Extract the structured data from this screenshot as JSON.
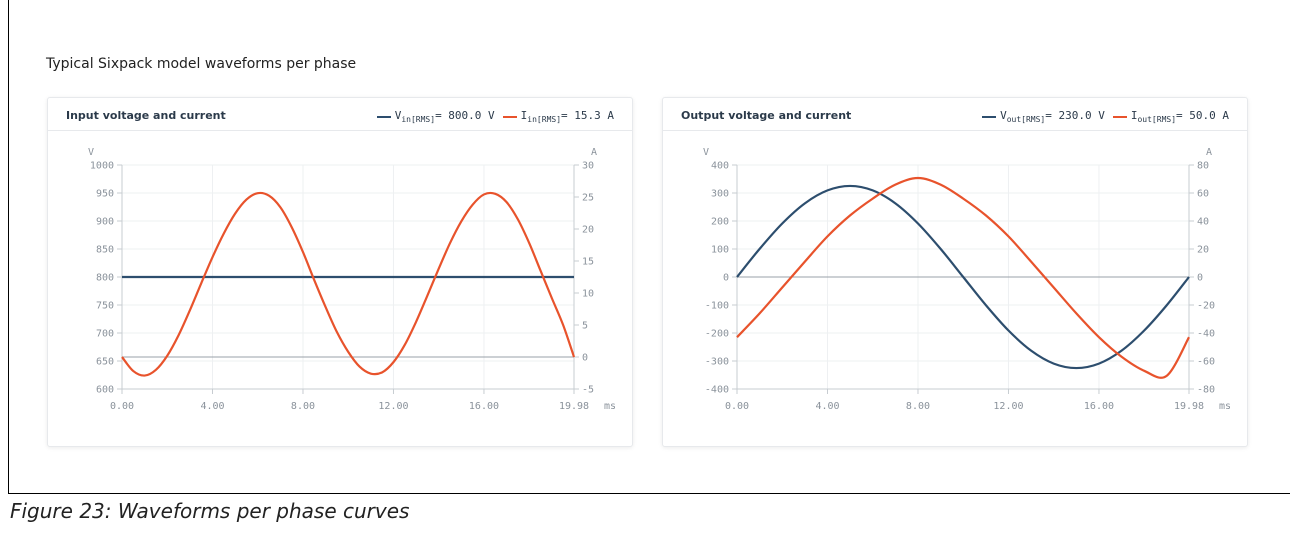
{
  "section_title": "Typical Sixpack model waveforms per phase",
  "caption": "Figure 23: Waveforms per phase curves",
  "colors": {
    "voltage": "#2d4e6e",
    "current": "#e8532c"
  },
  "chart_data": [
    {
      "type": "line",
      "title": "Input voltage and current",
      "legend": [
        {
          "base": "V",
          "sub": "in[RMS]",
          "value": "= 800.0 V",
          "color": "#2d4e6e"
        },
        {
          "base": "I",
          "sub": "in[RMS]",
          "value": "= 15.3 A",
          "color": "#e8532c"
        }
      ],
      "left_unit": "V",
      "right_unit": "A",
      "x_unit": "ms",
      "xlim": [
        0,
        19.98
      ],
      "x_ticks": [
        0,
        4,
        8,
        12,
        16,
        19.98
      ],
      "x_tick_labels": [
        "0.00",
        "4.00",
        "8.00",
        "12.00",
        "16.00",
        "19.98"
      ],
      "ylim_left": [
        600,
        1000
      ],
      "y_ticks_left": [
        600,
        650,
        700,
        750,
        800,
        850,
        900,
        950,
        1000
      ],
      "y_tick_labels_left": [
        "600",
        "650",
        "700",
        "750",
        "800",
        "850",
        "900",
        "950",
        "1000"
      ],
      "ylim_right": [
        -5,
        30
      ],
      "y_ticks_right": [
        -5,
        0,
        5,
        10,
        15,
        20,
        25,
        30
      ],
      "y_tick_labels_right": [
        "-5",
        "0",
        "5",
        "10",
        "15",
        "20",
        "25",
        "30"
      ],
      "zero_line_right": 0,
      "series": [
        {
          "axis": "left",
          "color": "#2d4e6e",
          "x": [
            0,
            19.98
          ],
          "y": [
            800,
            800
          ]
        },
        {
          "axis": "right",
          "color": "#e8532c",
          "x": [
            0,
            0.5,
            1,
            1.5,
            2,
            2.5,
            3,
            3.5,
            4,
            4.5,
            5,
            5.5,
            6,
            6.5,
            7,
            7.5,
            8,
            8.5,
            9,
            9.5,
            10,
            10.5,
            11,
            11.5,
            12,
            12.5,
            13,
            13.5,
            14,
            14.5,
            15,
            15.5,
            16,
            16.5,
            17,
            17.5,
            18,
            18.5,
            19,
            19.5,
            19.98
          ],
          "y": [
            0,
            -2.2,
            -2.9,
            -2,
            0.2,
            3.4,
            7.3,
            11.5,
            15.6,
            19.3,
            22.4,
            24.6,
            25.6,
            25.2,
            23.4,
            20.3,
            16.4,
            12,
            7.8,
            3.9,
            0.8,
            -1.5,
            -2.6,
            -2.4,
            -0.8,
            1.9,
            5.5,
            9.6,
            13.8,
            17.8,
            21.2,
            23.8,
            25.4,
            25.5,
            24.2,
            21.5,
            17.8,
            13.5,
            9.2,
            5,
            0
          ]
        }
      ]
    },
    {
      "type": "line",
      "title": "Output voltage and current",
      "legend": [
        {
          "base": "V",
          "sub": "out[RMS]",
          "value": "= 230.0 V",
          "color": "#2d4e6e"
        },
        {
          "base": "I",
          "sub": "out[RMS]",
          "value": "= 50.0 A",
          "color": "#e8532c"
        }
      ],
      "left_unit": "V",
      "right_unit": "A",
      "x_unit": "ms",
      "xlim": [
        0,
        19.98
      ],
      "x_ticks": [
        0,
        4,
        8,
        12,
        16,
        19.98
      ],
      "x_tick_labels": [
        "0.00",
        "4.00",
        "8.00",
        "12.00",
        "16.00",
        "19.98"
      ],
      "ylim_left": [
        -400,
        400
      ],
      "y_ticks_left": [
        -400,
        -300,
        -200,
        -100,
        0,
        100,
        200,
        300,
        400
      ],
      "y_tick_labels_left": [
        "-400",
        "-300",
        "-200",
        "-100",
        "0",
        "100",
        "200",
        "300",
        "400"
      ],
      "ylim_right": [
        -80,
        80
      ],
      "y_ticks_right": [
        -80,
        -60,
        -40,
        -20,
        0,
        20,
        40,
        60,
        80
      ],
      "y_tick_labels_right": [
        "-80",
        "-60",
        "-40",
        "-20",
        "0",
        "20",
        "40",
        "60",
        "80"
      ],
      "zero_line_right": 0,
      "series": [
        {
          "axis": "left",
          "color": "#2d4e6e",
          "x": [
            0,
            1,
            2,
            3,
            4,
            5,
            6,
            7,
            8,
            9,
            10,
            11,
            12,
            13,
            14,
            15,
            16,
            17,
            18,
            19,
            19.98
          ],
          "y": [
            0,
            100.5,
            191.2,
            263.1,
            309.3,
            325.3,
            309.3,
            263.1,
            191.2,
            100.5,
            0,
            -100.5,
            -191.2,
            -263.1,
            -309.3,
            -325.3,
            -309.3,
            -263.1,
            -191.2,
            -100.5,
            0
          ]
        },
        {
          "axis": "right",
          "color": "#e8532c",
          "x": [
            0,
            1,
            2,
            3,
            4,
            5,
            6,
            7,
            8,
            9,
            10,
            11,
            12,
            13,
            14,
            15,
            16,
            17,
            18,
            19,
            19.98
          ],
          "y": [
            -43,
            -26,
            -7.5,
            11,
            29,
            44,
            56,
            66,
            70.7,
            66,
            56,
            44,
            29,
            11,
            -7.5,
            -26,
            -43,
            -57,
            -67,
            -70.5,
            -43
          ]
        }
      ]
    }
  ]
}
